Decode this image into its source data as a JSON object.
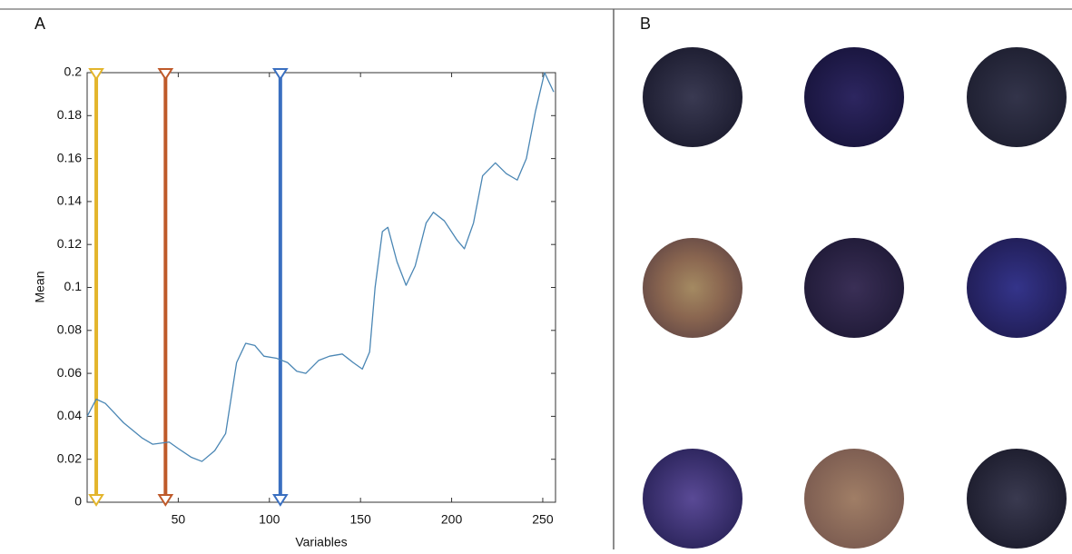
{
  "panel_a_label": "A",
  "panel_b_label": "B",
  "chart_data": {
    "type": "line",
    "x_label": "Variables",
    "y_label": "Mean",
    "x": [
      0,
      5,
      10,
      20,
      30,
      36,
      45,
      50,
      57,
      63,
      70,
      76,
      82,
      87,
      92,
      97,
      104,
      110,
      115,
      120,
      127,
      133,
      140,
      146,
      151,
      155,
      158,
      162,
      165,
      170,
      175,
      180,
      186,
      190,
      196,
      203,
      207,
      212,
      217,
      224,
      230,
      236,
      241,
      246,
      251,
      256
    ],
    "series": [
      {
        "color": "#4a86b4",
        "values": [
          0.04,
          0.048,
          0.046,
          0.037,
          0.03,
          0.027,
          0.028,
          0.025,
          0.021,
          0.019,
          0.024,
          0.032,
          0.065,
          0.074,
          0.073,
          0.068,
          0.067,
          0.065,
          0.061,
          0.06,
          0.066,
          0.068,
          0.069,
          0.065,
          0.062,
          0.07,
          0.1,
          0.126,
          0.128,
          0.112,
          0.101,
          0.11,
          0.13,
          0.135,
          0.131,
          0.122,
          0.118,
          0.13,
          0.152,
          0.158,
          0.153,
          0.15,
          0.16,
          0.182,
          0.2,
          0.191
        ]
      }
    ],
    "markers": [
      {
        "x": 5,
        "color": "#e3b52c"
      },
      {
        "x": 43,
        "color": "#bf5a2a"
      },
      {
        "x": 106,
        "color": "#3a6fc0"
      }
    ],
    "xlim": [
      0,
      257
    ],
    "ylim": [
      0,
      0.2
    ],
    "xticks": [
      50,
      100,
      150,
      200,
      250
    ],
    "yticks": [
      0,
      0.02,
      0.04,
      0.06,
      0.08,
      0.1,
      0.12,
      0.14,
      0.16,
      0.18,
      0.2
    ]
  }
}
